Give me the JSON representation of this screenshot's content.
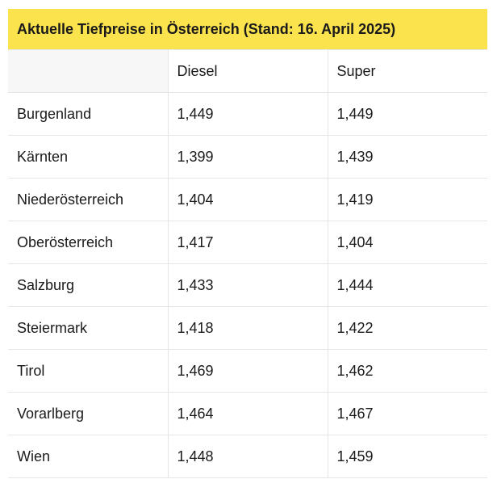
{
  "table": {
    "title": "Aktuelle Tiefpreise in Österreich (Stand: 16. April 2025)",
    "headers": {
      "region": "",
      "diesel": "Diesel",
      "super": "Super"
    },
    "rows": [
      {
        "region": "Burgenland",
        "diesel": "1,449",
        "super": "1,449"
      },
      {
        "region": "Kärnten",
        "diesel": "1,399",
        "super": "1,439"
      },
      {
        "region": "Niederösterreich",
        "diesel": "1,404",
        "super": "1,419"
      },
      {
        "region": "Oberösterreich",
        "diesel": "1,417",
        "super": "1,404"
      },
      {
        "region": "Salzburg",
        "diesel": "1,433",
        "super": "1,444"
      },
      {
        "region": "Steiermark",
        "diesel": "1,418",
        "super": "1,422"
      },
      {
        "region": "Tirol",
        "diesel": "1,469",
        "super": "1,462"
      },
      {
        "region": "Vorarlberg",
        "diesel": "1,464",
        "super": "1,467"
      },
      {
        "region": "Wien",
        "diesel": "1,448",
        "super": "1,459"
      }
    ]
  },
  "colors": {
    "title_background": "#fbe34e",
    "border": "#e6e6e6"
  }
}
